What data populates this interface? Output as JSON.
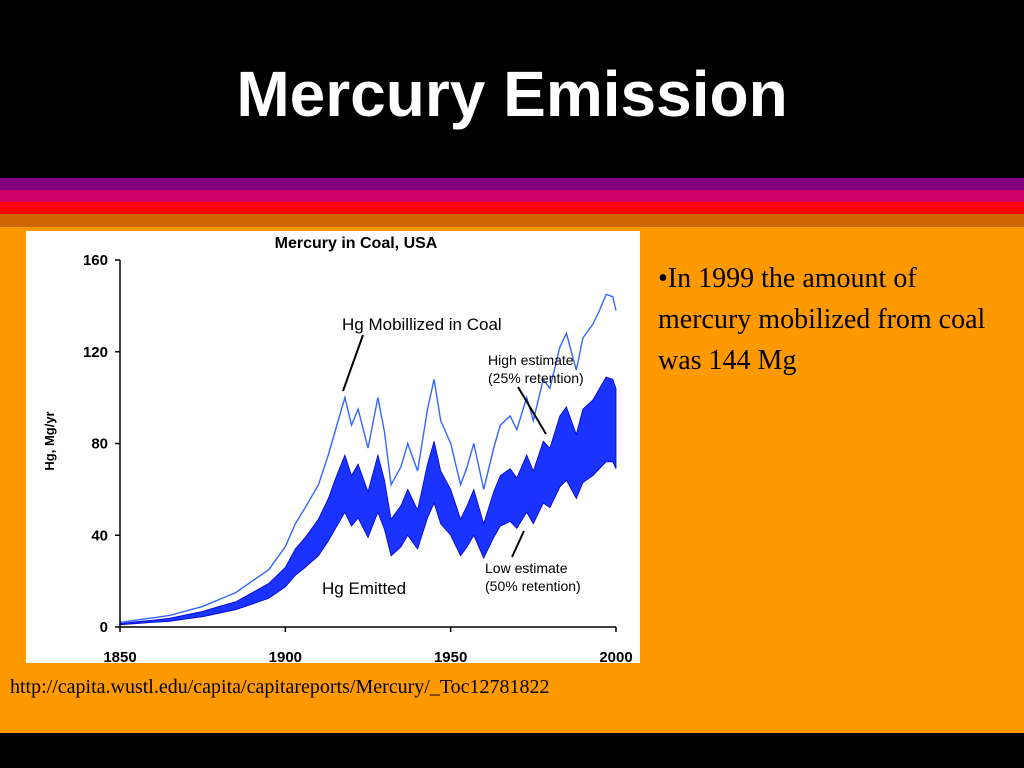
{
  "slide": {
    "title": "Mercury Emission",
    "bullet": "•In 1999 the amount of mercury mobilized from coal was 144 Mg",
    "source_url": "http://capita.wustl.edu/capita/capitareports/Mercury/_Toc12781822",
    "colors": {
      "background": "#ff9900",
      "title_band": "#000000",
      "stripes": [
        "#800080",
        "#cc0066",
        "#ff0000",
        "#cc6600"
      ],
      "mobilized_line": "#3366ff",
      "emitted_band": "#1a33ff"
    }
  },
  "chart_data": {
    "type": "area",
    "title": "Mercury in Coal, USA",
    "xlabel": "",
    "ylabel": "Hg, Mg/yr",
    "xlim": [
      1850,
      2000
    ],
    "ylim": [
      0,
      160
    ],
    "x_ticks": [
      1850,
      1900,
      1950,
      2000
    ],
    "y_ticks": [
      0,
      40,
      80,
      120,
      160
    ],
    "grid": false,
    "annotations": {
      "mobilized": "Hg Mobillized in Coal",
      "emitted": "Hg Emitted",
      "high_estimate": "High estimate",
      "high_estimate_note": "(25% retention)",
      "low_estimate": "Low estimate",
      "low_estimate_note": "(50% retention)"
    },
    "x": [
      1850,
      1855,
      1860,
      1865,
      1870,
      1875,
      1880,
      1885,
      1890,
      1895,
      1900,
      1903,
      1906,
      1910,
      1913,
      1915,
      1918,
      1920,
      1922,
      1925,
      1928,
      1930,
      1932,
      1935,
      1937,
      1940,
      1943,
      1945,
      1947,
      1950,
      1953,
      1955,
      1957,
      1960,
      1963,
      1965,
      1968,
      1970,
      1973,
      1975,
      1978,
      1980,
      1983,
      1985,
      1988,
      1990,
      1993,
      1995,
      1997,
      1999,
      2000
    ],
    "series": [
      {
        "id": "mobilized",
        "values": [
          2,
          3,
          4,
          5,
          7,
          9,
          12,
          15,
          20,
          25,
          35,
          45,
          52,
          62,
          75,
          85,
          100,
          88,
          95,
          78,
          100,
          85,
          62,
          70,
          80,
          68,
          95,
          108,
          90,
          80,
          62,
          70,
          80,
          60,
          78,
          88,
          92,
          86,
          100,
          90,
          108,
          104,
          122,
          128,
          112,
          126,
          132,
          138,
          145,
          144,
          138
        ]
      },
      {
        "id": "high",
        "values": [
          1.5,
          2.3,
          3,
          3.8,
          5.3,
          6.8,
          9,
          11,
          15,
          19,
          26,
          34,
          39,
          47,
          56,
          64,
          75,
          66,
          71,
          59,
          75,
          64,
          47,
          53,
          60,
          51,
          71,
          81,
          68,
          60,
          47,
          53,
          60,
          45,
          59,
          66,
          69,
          65,
          75,
          68,
          81,
          78,
          92,
          96,
          84,
          95,
          99,
          104,
          109,
          108,
          104
        ]
      },
      {
        "id": "low",
        "values": [
          1,
          1.5,
          2,
          2.5,
          3.5,
          4.5,
          6,
          7.5,
          10,
          12.5,
          17.5,
          22.5,
          26,
          31,
          37.5,
          42.5,
          50,
          44,
          47.5,
          39,
          50,
          42.5,
          31,
          35,
          40,
          34,
          47.5,
          54,
          45,
          40,
          31,
          35,
          40,
          30,
          39,
          44,
          46,
          43,
          50,
          45,
          54,
          52,
          61,
          64,
          56,
          63,
          66,
          69,
          72,
          72,
          69
        ]
      }
    ]
  }
}
